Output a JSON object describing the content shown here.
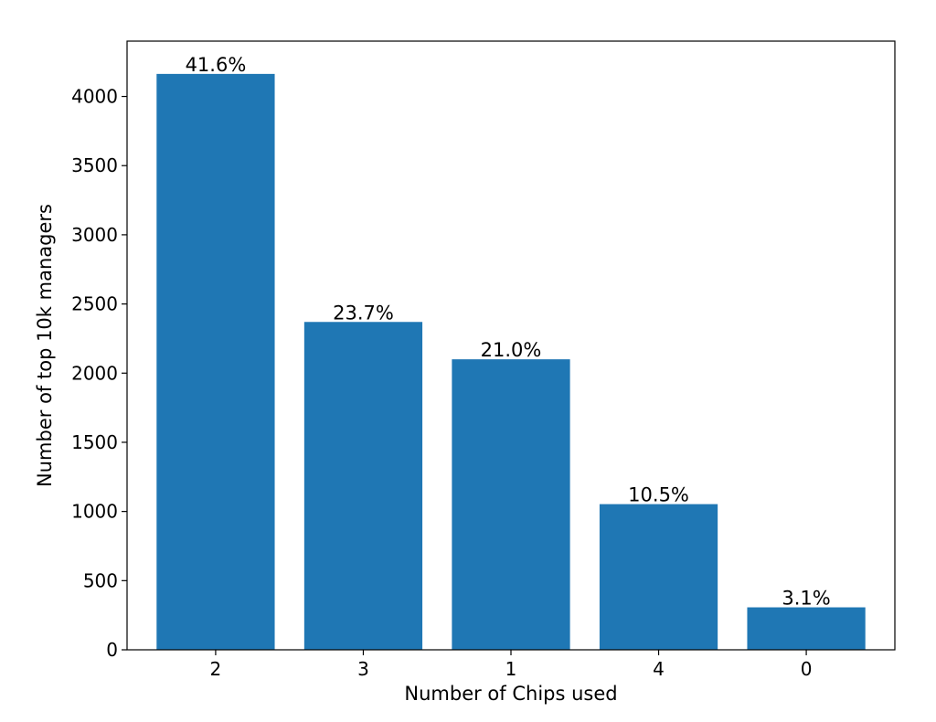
{
  "chart_data": {
    "type": "bar",
    "title": "",
    "xlabel": "Number of Chips used",
    "ylabel": "Number of top 10k managers",
    "categories": [
      "2",
      "3",
      "1",
      "4",
      "0"
    ],
    "values": [
      4163,
      2370,
      2100,
      1053,
      307
    ],
    "data_labels": [
      "41.6%",
      "23.7%",
      "21.0%",
      "10.5%",
      "3.1%"
    ],
    "ylim": [
      0,
      4400
    ],
    "yticks": [
      0,
      500,
      1000,
      1500,
      2000,
      2500,
      3000,
      3500,
      4000
    ],
    "bar_color": "#1f77b4",
    "grid": false,
    "legend": "none"
  }
}
